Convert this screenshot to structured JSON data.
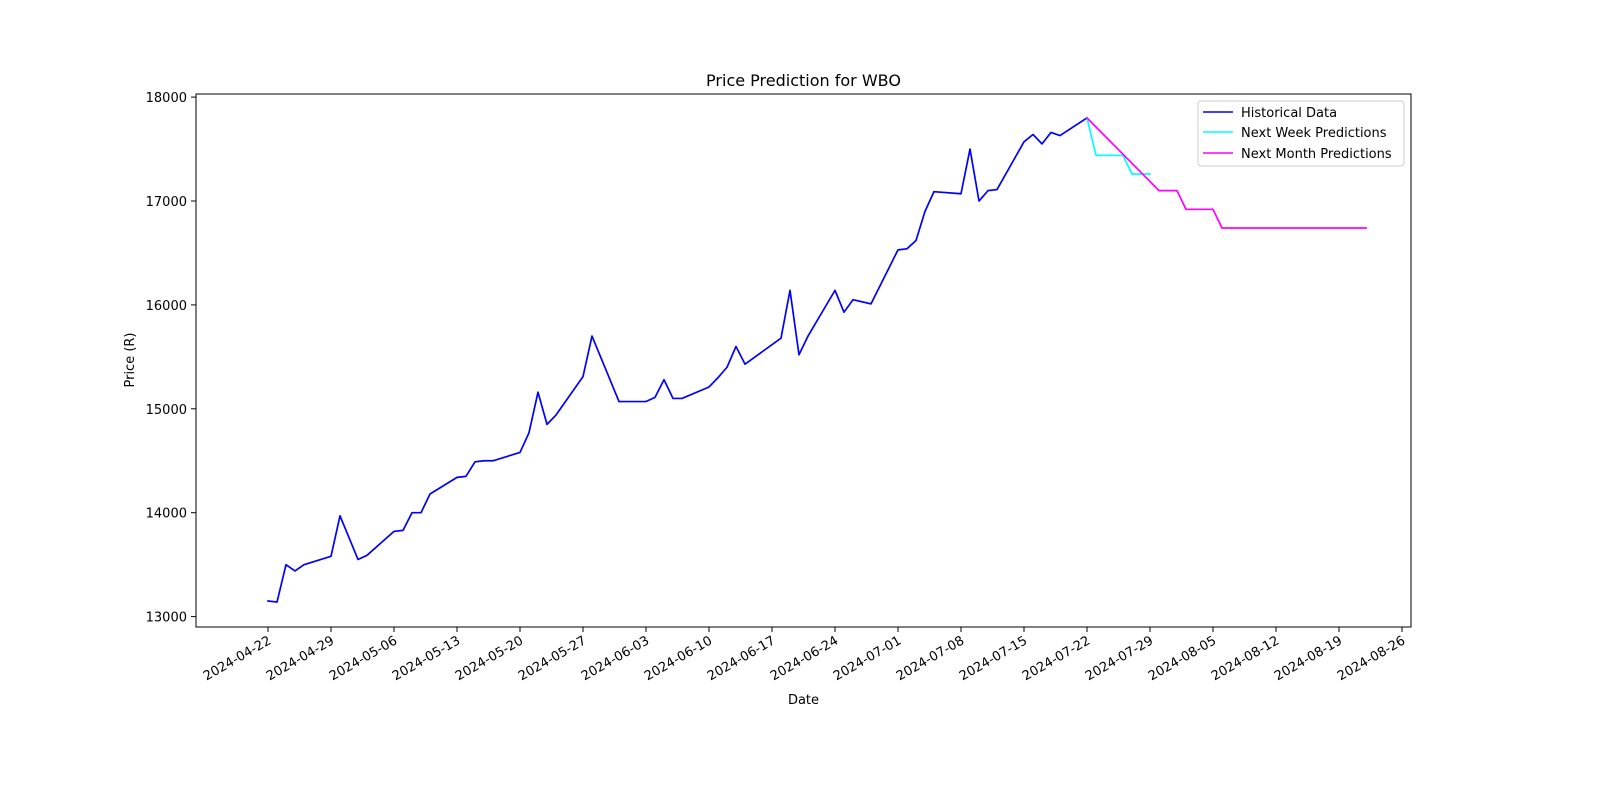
{
  "chart_data": {
    "type": "line",
    "title": "Price Prediction for WBO",
    "xlabel": "Date",
    "ylabel": "Price (R)",
    "xlim": [
      "2024-04-14",
      "2024-08-27"
    ],
    "ylim": [
      12900,
      18030
    ],
    "x_ticks": [
      "2024-04-22",
      "2024-04-29",
      "2024-05-06",
      "2024-05-13",
      "2024-05-20",
      "2024-05-27",
      "2024-06-03",
      "2024-06-10",
      "2024-06-17",
      "2024-06-24",
      "2024-07-01",
      "2024-07-08",
      "2024-07-15",
      "2024-07-22",
      "2024-07-29",
      "2024-08-05",
      "2024-08-12",
      "2024-08-19",
      "2024-08-26"
    ],
    "y_ticks": [
      13000,
      14000,
      15000,
      16000,
      17000,
      18000
    ],
    "grid": false,
    "legend": "top-right",
    "series": [
      {
        "name": "Historical Data",
        "color": "#0000ff",
        "points": [
          [
            "2024-04-22",
            13150
          ],
          [
            "2024-04-23",
            13140
          ],
          [
            "2024-04-24",
            13500
          ],
          [
            "2024-04-25",
            13440
          ],
          [
            "2024-04-26",
            13500
          ],
          [
            "2024-04-29",
            13580
          ],
          [
            "2024-04-30",
            13970
          ],
          [
            "2024-05-02",
            13550
          ],
          [
            "2024-05-03",
            13590
          ],
          [
            "2024-05-06",
            13820
          ],
          [
            "2024-05-07",
            13830
          ],
          [
            "2024-05-08",
            14000
          ],
          [
            "2024-05-09",
            14000
          ],
          [
            "2024-05-10",
            14180
          ],
          [
            "2024-05-13",
            14340
          ],
          [
            "2024-05-14",
            14350
          ],
          [
            "2024-05-15",
            14490
          ],
          [
            "2024-05-16",
            14500
          ],
          [
            "2024-05-17",
            14500
          ],
          [
            "2024-05-20",
            14580
          ],
          [
            "2024-05-21",
            14770
          ],
          [
            "2024-05-22",
            15160
          ],
          [
            "2024-05-23",
            14850
          ],
          [
            "2024-05-24",
            14940
          ],
          [
            "2024-05-27",
            15310
          ],
          [
            "2024-05-28",
            15700
          ],
          [
            "2024-05-30",
            15280
          ],
          [
            "2024-05-31",
            15070
          ],
          [
            "2024-06-03",
            15070
          ],
          [
            "2024-06-04",
            15110
          ],
          [
            "2024-06-05",
            15280
          ],
          [
            "2024-06-06",
            15100
          ],
          [
            "2024-06-07",
            15100
          ],
          [
            "2024-06-10",
            15210
          ],
          [
            "2024-06-11",
            15300
          ],
          [
            "2024-06-12",
            15400
          ],
          [
            "2024-06-13",
            15600
          ],
          [
            "2024-06-14",
            15430
          ],
          [
            "2024-06-18",
            15680
          ],
          [
            "2024-06-19",
            16140
          ],
          [
            "2024-06-20",
            15520
          ],
          [
            "2024-06-21",
            15700
          ],
          [
            "2024-06-24",
            16140
          ],
          [
            "2024-06-25",
            15930
          ],
          [
            "2024-06-26",
            16050
          ],
          [
            "2024-06-28",
            16010
          ],
          [
            "2024-07-01",
            16530
          ],
          [
            "2024-07-02",
            16540
          ],
          [
            "2024-07-03",
            16620
          ],
          [
            "2024-07-04",
            16900
          ],
          [
            "2024-07-05",
            17090
          ],
          [
            "2024-07-08",
            17070
          ],
          [
            "2024-07-09",
            17500
          ],
          [
            "2024-07-10",
            17000
          ],
          [
            "2024-07-11",
            17100
          ],
          [
            "2024-07-12",
            17110
          ],
          [
            "2024-07-15",
            17570
          ],
          [
            "2024-07-16",
            17640
          ],
          [
            "2024-07-17",
            17550
          ],
          [
            "2024-07-18",
            17660
          ],
          [
            "2024-07-19",
            17630
          ],
          [
            "2024-07-22",
            17800
          ]
        ]
      },
      {
        "name": "Next Week Predictions",
        "color": "#00ffff",
        "points": [
          [
            "2024-07-22",
            17800
          ],
          [
            "2024-07-23",
            17440
          ],
          [
            "2024-07-24",
            17440
          ],
          [
            "2024-07-25",
            17440
          ],
          [
            "2024-07-26",
            17440
          ],
          [
            "2024-07-27",
            17260
          ],
          [
            "2024-07-28",
            17260
          ],
          [
            "2024-07-29",
            17260
          ]
        ]
      },
      {
        "name": "Next Month Predictions",
        "color": "#ff00ff",
        "points": [
          [
            "2024-07-22",
            17800
          ],
          [
            "2024-07-30",
            17100
          ],
          [
            "2024-07-31",
            17100
          ],
          [
            "2024-08-01",
            17100
          ],
          [
            "2024-08-02",
            16920
          ],
          [
            "2024-08-05",
            16920
          ],
          [
            "2024-08-06",
            16740
          ],
          [
            "2024-08-07",
            16740
          ],
          [
            "2024-08-08",
            16740
          ],
          [
            "2024-08-09",
            16740
          ],
          [
            "2024-08-12",
            16740
          ],
          [
            "2024-08-13",
            16740
          ],
          [
            "2024-08-14",
            16740
          ],
          [
            "2024-08-15",
            16740
          ],
          [
            "2024-08-16",
            16740
          ],
          [
            "2024-08-19",
            16740
          ],
          [
            "2024-08-20",
            16740
          ],
          [
            "2024-08-21",
            16740
          ],
          [
            "2024-08-22",
            16740
          ]
        ]
      }
    ]
  }
}
